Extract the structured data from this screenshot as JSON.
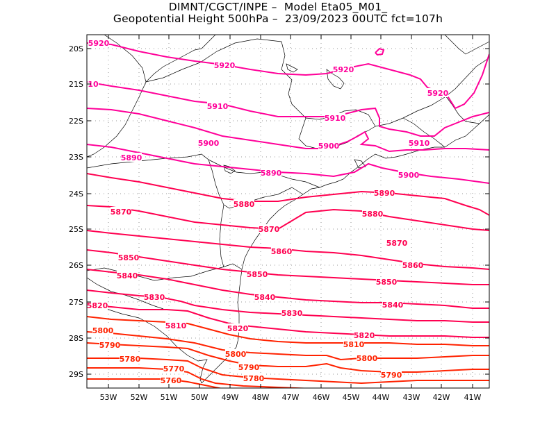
{
  "title": {
    "line1": "DIMNT/CGCT/INPE –  Model Eta05_M01_",
    "line2": "Geopotential Height 500hPa –  23/09/2023 00UTC fct=107h"
  },
  "axes": {
    "lon_labels": [
      "53W",
      "52W",
      "51W",
      "50W",
      "49W",
      "48W",
      "47W",
      "46W",
      "45W",
      "44W",
      "43W",
      "42W",
      "41W"
    ],
    "lat_labels": [
      "20S",
      "21S",
      "22S",
      "23S",
      "24S",
      "25S",
      "26S",
      "27S",
      "28S",
      "29S"
    ]
  },
  "colors": {
    "high": "#ff0099",
    "mid": "#ff0050",
    "low": "#ff2200",
    "coast": "#000000",
    "grid": "#9a9a9a"
  },
  "contour_labels": [
    "5920",
    "5910",
    "5900",
    "5890",
    "5880",
    "5870",
    "5860",
    "5850",
    "5840",
    "5830",
    "5820",
    "5810",
    "5800",
    "5790",
    "5780",
    "5770",
    "5760",
    "10"
  ],
  "chart_data": {
    "type": "contour",
    "variable": "Geopotential Height 500hPa",
    "lon_range": [
      -53.6,
      -40.5
    ],
    "lat_range": [
      -29.4,
      -19.8
    ],
    "levels": [
      5760,
      5770,
      5780,
      5790,
      5800,
      5810,
      5820,
      5830,
      5840,
      5850,
      5860,
      5870,
      5880,
      5890,
      5900,
      5910,
      5920
    ]
  }
}
